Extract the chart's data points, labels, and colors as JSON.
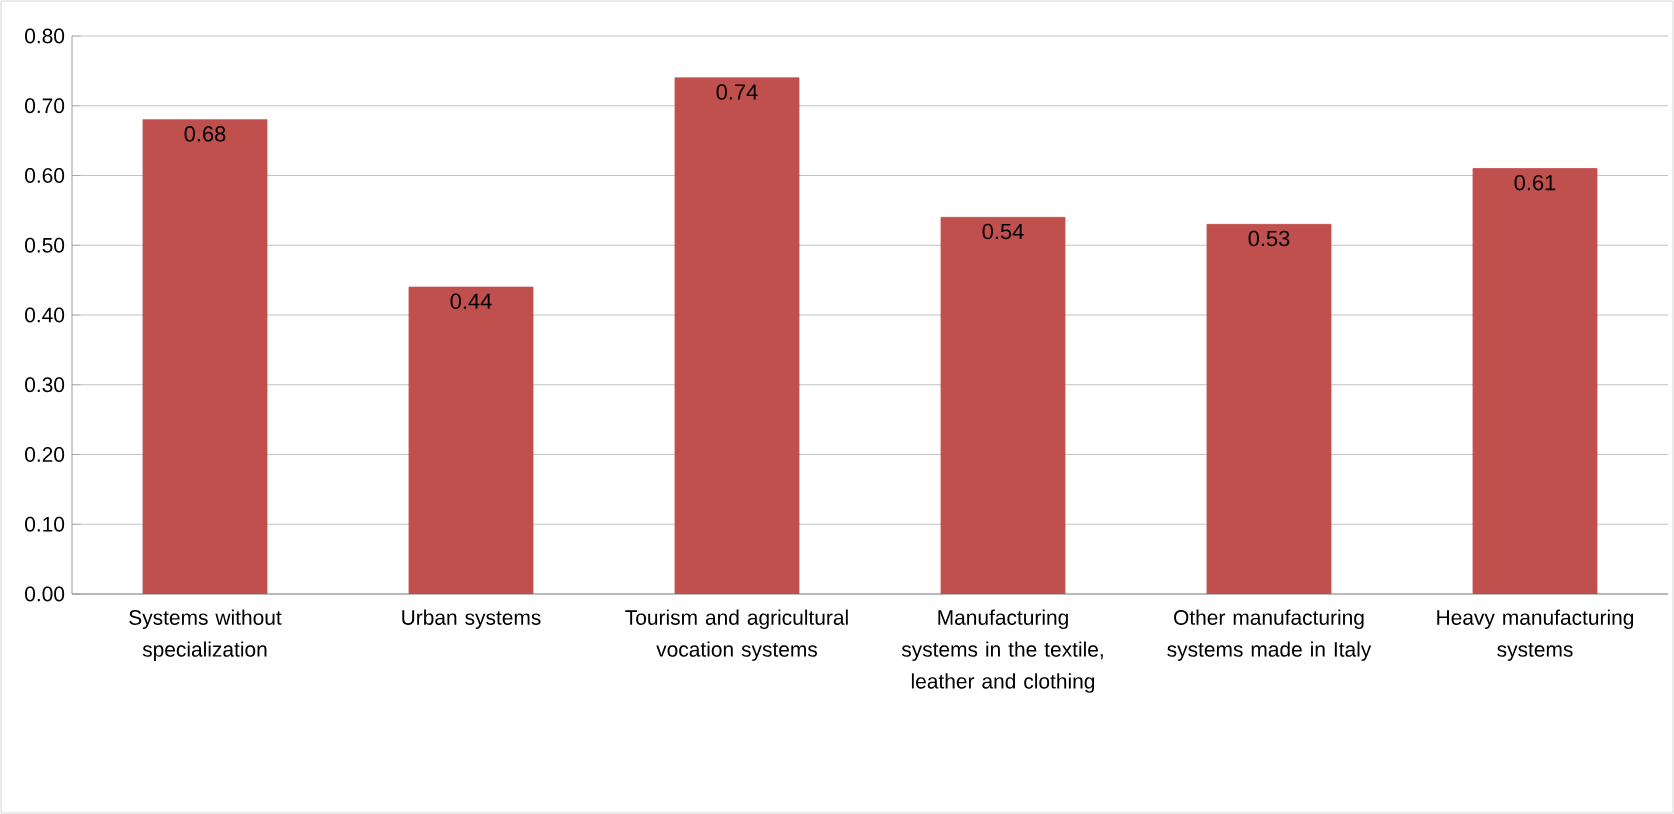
{
  "chart_data": {
    "type": "bar",
    "categories": [
      "Systems without specialization",
      "Urban systems",
      "Tourism and agricultural vocation systems",
      "Manufacturing systems in the textile, leather and clothing",
      "Other manufacturing systems made in Italy",
      "Heavy manufacturing systems"
    ],
    "values": [
      0.68,
      0.44,
      0.74,
      0.54,
      0.53,
      0.61
    ],
    "color": "#c0504d",
    "data_labels": true,
    "grid": "y",
    "ylim": [
      0,
      0.8
    ],
    "yticks": [
      {
        "value": 0,
        "label": "0.00"
      },
      {
        "value": 0.1,
        "label": "0.10"
      },
      {
        "value": 0.2,
        "label": "0.20"
      },
      {
        "value": 0.3,
        "label": "0.30"
      },
      {
        "value": 0.4,
        "label": "0.40"
      },
      {
        "value": 0.5,
        "label": "0.50"
      },
      {
        "value": 0.6,
        "label": "0.60"
      },
      {
        "value": 0.7,
        "label": "0.70"
      },
      {
        "value": 0.8,
        "label": "0.80"
      }
    ]
  }
}
